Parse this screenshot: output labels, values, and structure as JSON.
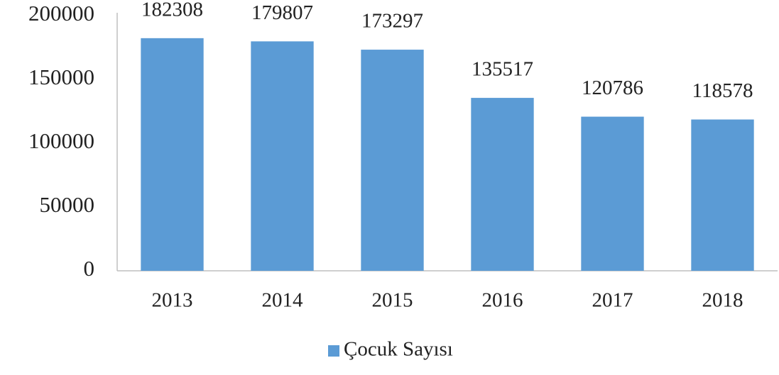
{
  "chart_data": {
    "type": "bar",
    "categories": [
      "2013",
      "2014",
      "2015",
      "2016",
      "2017",
      "2018"
    ],
    "series": [
      {
        "name": "Çocuk Sayısı",
        "color": "#5b9bd5",
        "values": [
          182308,
          179807,
          173297,
          135517,
          120786,
          118578
        ]
      }
    ],
    "ylim": [
      0,
      200000
    ],
    "yticks": [
      0,
      50000,
      100000,
      150000,
      200000
    ],
    "grid": false,
    "legend": "bottom"
  }
}
